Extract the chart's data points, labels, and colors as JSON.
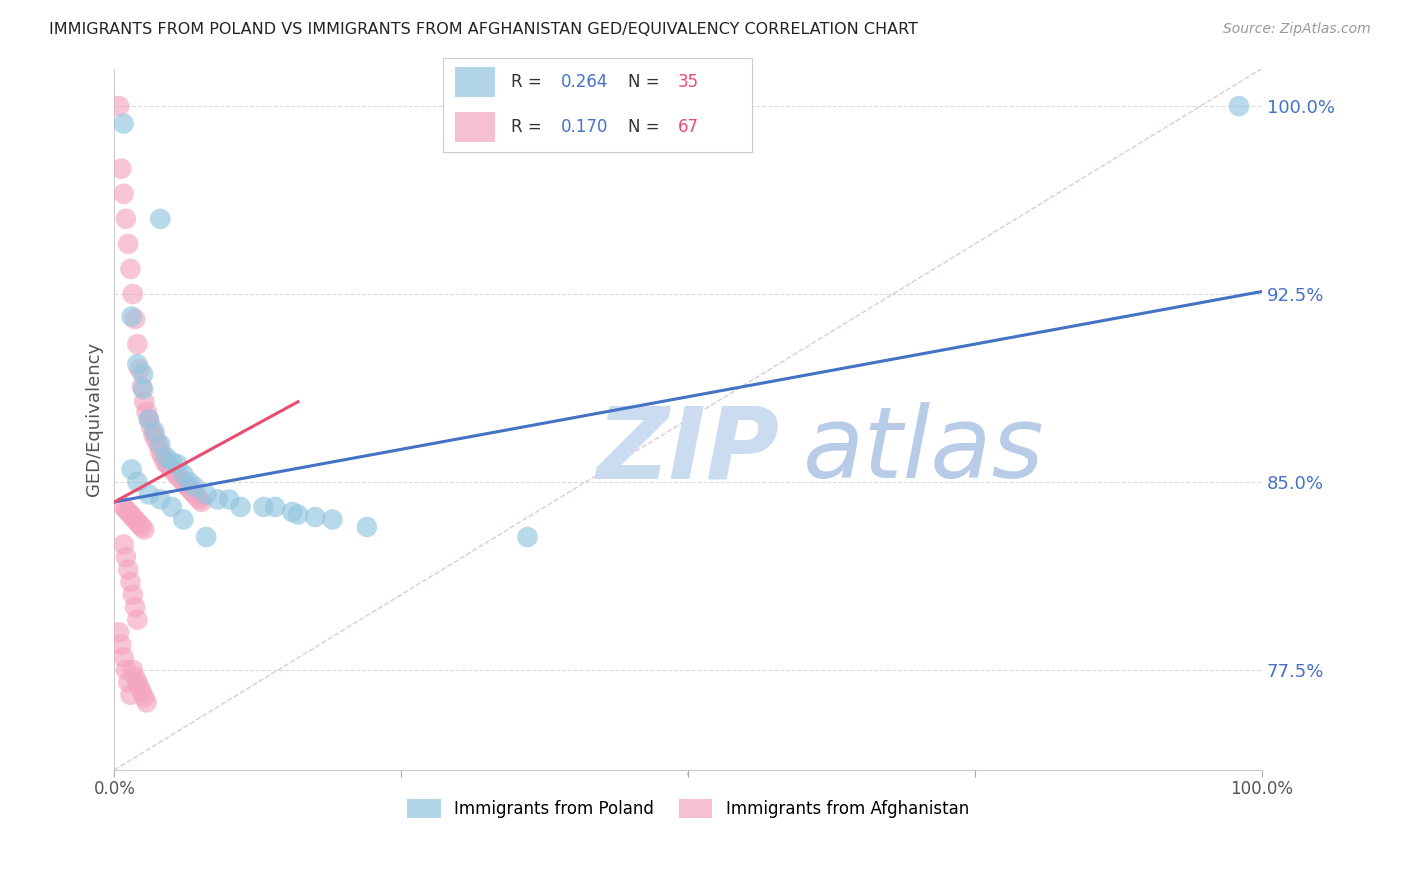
{
  "title": "IMMIGRANTS FROM POLAND VS IMMIGRANTS FROM AFGHANISTAN GED/EQUIVALENCY CORRELATION CHART",
  "source": "Source: ZipAtlas.com",
  "ylabel": "GED/Equivalency",
  "xlim": [
    0.0,
    1.0
  ],
  "ylim": [
    0.735,
    1.015
  ],
  "yticks": [
    0.775,
    0.85,
    0.925,
    1.0
  ],
  "ytick_labels": [
    "77.5%",
    "85.0%",
    "92.5%",
    "100.0%"
  ],
  "poland_scatter_x": [
    0.008,
    0.04,
    0.015,
    0.02,
    0.025,
    0.025,
    0.03,
    0.035,
    0.04,
    0.045,
    0.05,
    0.055,
    0.06,
    0.065,
    0.07,
    0.08,
    0.09,
    0.1,
    0.11,
    0.13,
    0.14,
    0.155,
    0.16,
    0.175,
    0.19,
    0.22,
    0.36,
    0.98,
    0.015,
    0.02,
    0.03,
    0.04,
    0.05,
    0.06,
    0.08
  ],
  "poland_scatter_y": [
    0.993,
    0.955,
    0.916,
    0.897,
    0.893,
    0.887,
    0.875,
    0.87,
    0.865,
    0.86,
    0.858,
    0.857,
    0.853,
    0.85,
    0.848,
    0.845,
    0.843,
    0.843,
    0.84,
    0.84,
    0.84,
    0.838,
    0.837,
    0.836,
    0.835,
    0.832,
    0.828,
    1.0,
    0.855,
    0.85,
    0.845,
    0.843,
    0.84,
    0.835,
    0.828
  ],
  "afghanistan_scatter_x": [
    0.004,
    0.006,
    0.008,
    0.01,
    0.012,
    0.014,
    0.016,
    0.018,
    0.02,
    0.022,
    0.024,
    0.026,
    0.028,
    0.03,
    0.032,
    0.034,
    0.036,
    0.038,
    0.04,
    0.042,
    0.044,
    0.046,
    0.048,
    0.05,
    0.052,
    0.054,
    0.056,
    0.058,
    0.06,
    0.062,
    0.064,
    0.066,
    0.068,
    0.07,
    0.072,
    0.074,
    0.076,
    0.008,
    0.01,
    0.012,
    0.014,
    0.016,
    0.018,
    0.02,
    0.022,
    0.024,
    0.026,
    0.008,
    0.01,
    0.012,
    0.014,
    0.016,
    0.018,
    0.02,
    0.004,
    0.006,
    0.008,
    0.01,
    0.012,
    0.014,
    0.016,
    0.018,
    0.02,
    0.022,
    0.024,
    0.026,
    0.028
  ],
  "afghanistan_scatter_y": [
    1.0,
    0.975,
    0.965,
    0.955,
    0.945,
    0.935,
    0.925,
    0.915,
    0.905,
    0.895,
    0.888,
    0.882,
    0.878,
    0.875,
    0.872,
    0.869,
    0.867,
    0.865,
    0.862,
    0.86,
    0.858,
    0.857,
    0.856,
    0.855,
    0.854,
    0.853,
    0.852,
    0.851,
    0.85,
    0.849,
    0.848,
    0.847,
    0.846,
    0.845,
    0.844,
    0.843,
    0.842,
    0.84,
    0.839,
    0.838,
    0.837,
    0.836,
    0.835,
    0.834,
    0.833,
    0.832,
    0.831,
    0.825,
    0.82,
    0.815,
    0.81,
    0.805,
    0.8,
    0.795,
    0.79,
    0.785,
    0.78,
    0.775,
    0.77,
    0.765,
    0.775,
    0.772,
    0.77,
    0.768,
    0.766,
    0.764,
    0.762
  ],
  "poland_line_x": [
    0.0,
    1.0
  ],
  "poland_line_y": [
    0.842,
    0.926
  ],
  "afghanistan_line_x": [
    0.0,
    0.16
  ],
  "afghanistan_line_y": [
    0.842,
    0.882
  ],
  "diag_line_x": [
    0.0,
    1.0
  ],
  "diag_line_y": [
    0.735,
    1.015
  ],
  "poland_dot_color": "#92c5de",
  "afghanistan_dot_color": "#f4a6c0",
  "poland_line_color": "#4472c4",
  "afghanistan_line_color": "#e84d6f",
  "diag_line_color": "#e0b8c8",
  "background_color": "#ffffff",
  "grid_color": "#d8d8d8",
  "title_color": "#222222",
  "ytick_color": "#4472c4",
  "watermark_zip": "ZIP",
  "watermark_atlas": "atlas",
  "watermark_color": "#ccdcf0",
  "legend_poland_patch": "#92c5de",
  "legend_afghanistan_patch": "#f4a6c0",
  "legend_r_color": "#4472c4",
  "legend_n_color": "#e84d6f",
  "bottom_legend_poland": "Immigrants from Poland",
  "bottom_legend_afghanistan": "Immigrants from Afghanistan"
}
